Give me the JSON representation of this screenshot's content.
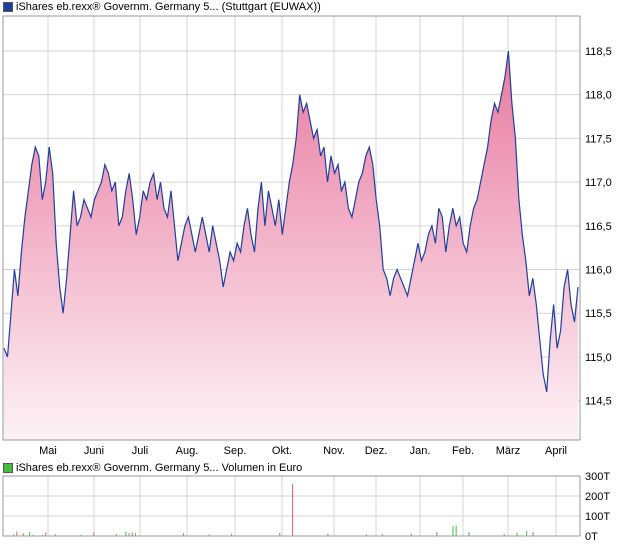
{
  "colors": {
    "price_line": "#1f3f9e",
    "area_top": "#e87a9f",
    "area_bottom": "#fdf2f6",
    "grid": "#d4d4d4",
    "volume_up": "#e05c76",
    "volume_down": "#3dbf3d",
    "price_swatch": "#1f3f9e",
    "volume_swatch": "#3dbf3d"
  },
  "chart_data": [
    {
      "type": "area",
      "legend": "iShares eb.rexx® Governm. Germany 5... (Stuttgart (EUWAX))",
      "x_labels": [
        "Mai",
        "Juni",
        "Juli",
        "Aug.",
        "Sep.",
        "Okt.",
        "Nov.",
        "Dez.",
        "Jan.",
        "Feb.",
        "März",
        "April"
      ],
      "y_ticks": [
        "118,5",
        "118,0",
        "117,5",
        "117,0",
        "116,5",
        "116,0",
        "115,5",
        "115,0",
        "114,5"
      ],
      "ylim": [
        114.05,
        118.9
      ],
      "grid": true,
      "series": [
        {
          "values": [
            115.1,
            115.0,
            115.5,
            116.0,
            115.7,
            116.2,
            116.6,
            116.9,
            117.2,
            117.4,
            117.3,
            116.8,
            117.0,
            117.4,
            117.1,
            116.3,
            115.8,
            115.5,
            115.9,
            116.4,
            116.9,
            116.5,
            116.6,
            116.8,
            116.7,
            116.6,
            116.8,
            116.9,
            117.0,
            117.2,
            117.1,
            116.9,
            117.0,
            116.5,
            116.6,
            116.9,
            117.1,
            116.8,
            116.4,
            116.6,
            116.9,
            116.8,
            117.0,
            117.1,
            116.8,
            117.0,
            116.7,
            116.6,
            116.9,
            116.5,
            116.1,
            116.3,
            116.5,
            116.6,
            116.4,
            116.2,
            116.4,
            116.6,
            116.4,
            116.2,
            116.5,
            116.3,
            116.1,
            115.8,
            116.0,
            116.2,
            116.1,
            116.3,
            116.2,
            116.5,
            116.7,
            116.4,
            116.2,
            116.7,
            117.0,
            116.5,
            116.9,
            116.7,
            116.5,
            116.8,
            116.4,
            116.7,
            117.0,
            117.2,
            117.5,
            118.0,
            117.8,
            117.9,
            117.7,
            117.5,
            117.6,
            117.3,
            117.4,
            117.0,
            117.3,
            117.1,
            117.2,
            116.9,
            117.0,
            116.7,
            116.6,
            116.8,
            117.0,
            117.1,
            117.3,
            117.4,
            117.2,
            116.8,
            116.5,
            116.0,
            115.9,
            115.7,
            115.9,
            116.0,
            115.9,
            115.8,
            115.7,
            115.9,
            116.1,
            116.3,
            116.1,
            116.2,
            116.4,
            116.5,
            116.3,
            116.7,
            116.6,
            116.2,
            116.5,
            116.7,
            116.5,
            116.6,
            116.3,
            116.2,
            116.5,
            116.7,
            116.8,
            117.0,
            117.2,
            117.4,
            117.7,
            117.9,
            117.8,
            118.0,
            118.2,
            118.5,
            117.9,
            117.5,
            116.8,
            116.4,
            116.1,
            115.7,
            115.9,
            115.6,
            115.2,
            114.8,
            114.6,
            115.2,
            115.6,
            115.1,
            115.3,
            115.8,
            116.0,
            115.6,
            115.4,
            115.8
          ]
        }
      ]
    },
    {
      "type": "bar",
      "legend": "iShares eb.rexx® Governm. Germany 5... Volumen in Euro",
      "y_ticks": [
        "300T",
        "200T",
        "100T",
        "0T"
      ],
      "ylim": [
        0,
        300
      ],
      "grid": true,
      "values": [
        0,
        0,
        0,
        8,
        0,
        0,
        14,
        0,
        0,
        6,
        0,
        0,
        5,
        0,
        0,
        0,
        9,
        0,
        0,
        0,
        0,
        0,
        0,
        0,
        6,
        0,
        0,
        0,
        0,
        0,
        0,
        0,
        0,
        0,
        0,
        10,
        0,
        0,
        22,
        0,
        0,
        14,
        0,
        0,
        0,
        0,
        0,
        0,
        0,
        0,
        0,
        0,
        0,
        0,
        0,
        0,
        9,
        0,
        0,
        0,
        0,
        0,
        0,
        0,
        8,
        0,
        0,
        0,
        0,
        0,
        0,
        0,
        0,
        0,
        0,
        0,
        0,
        0,
        0,
        0,
        0,
        0,
        0,
        0,
        0,
        0,
        16,
        0,
        0,
        0,
        0,
        0,
        0,
        0,
        0,
        0,
        0,
        0,
        0,
        0,
        0,
        0,
        0,
        0,
        0,
        0,
        0,
        0,
        0,
        0,
        0,
        0,
        0,
        9,
        0,
        0,
        0,
        0,
        0,
        0,
        0,
        0,
        0,
        0,
        0,
        0,
        0,
        12,
        0,
        0,
        0,
        0,
        0,
        0,
        0,
        0,
        0,
        0,
        0,
        0,
        0,
        0,
        0,
        0,
        0,
        0,
        0,
        0,
        0,
        0,
        0,
        0,
        0,
        0,
        0,
        0,
        0,
        0,
        0,
        0,
        0,
        0,
        0,
        0,
        0,
        0,
        0,
        0,
        0,
        0,
        0,
        0,
        0,
        0,
        0,
        0,
        0,
        0,
        0,
        0
      ],
      "spikes": [
        {
          "index": 4,
          "value": 22,
          "dir": "up"
        },
        {
          "index": 8,
          "value": 20,
          "dir": "down"
        },
        {
          "index": 13,
          "value": 18,
          "dir": "up"
        },
        {
          "index": 28,
          "value": 18,
          "dir": "up"
        },
        {
          "index": 39,
          "value": 16,
          "dir": "down"
        },
        {
          "index": 40,
          "value": 18,
          "dir": "up"
        },
        {
          "index": 56,
          "value": 14,
          "dir": "down"
        },
        {
          "index": 71,
          "value": 12,
          "dir": "down"
        },
        {
          "index": 90,
          "value": 260,
          "dir": "up"
        },
        {
          "index": 101,
          "value": 12,
          "dir": "down"
        },
        {
          "index": 118,
          "value": 10,
          "dir": "down"
        },
        {
          "index": 135,
          "value": 20,
          "dir": "up"
        },
        {
          "index": 140,
          "value": 50,
          "dir": "down"
        },
        {
          "index": 141,
          "value": 50,
          "dir": "down"
        },
        {
          "index": 145,
          "value": 20,
          "dir": "down"
        },
        {
          "index": 156,
          "value": 10,
          "dir": "up"
        },
        {
          "index": 160,
          "value": 16,
          "dir": "down"
        },
        {
          "index": 163,
          "value": 25,
          "dir": "down"
        },
        {
          "index": 165,
          "value": 20,
          "dir": "up"
        }
      ]
    }
  ]
}
